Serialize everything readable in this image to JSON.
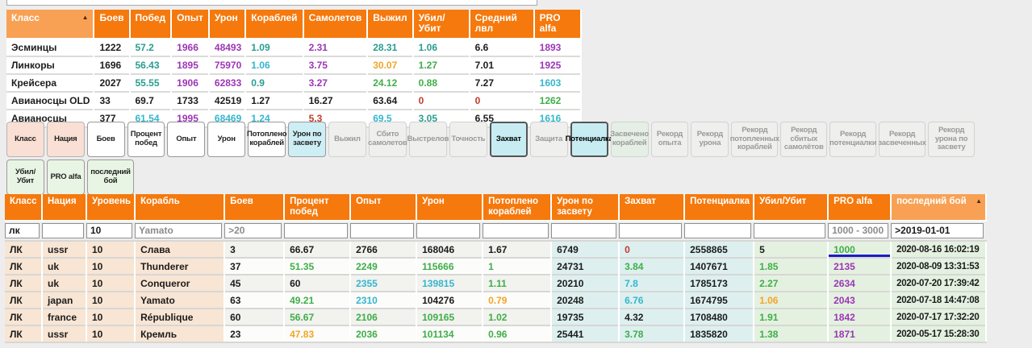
{
  "icons": {
    "sort_asc": "▲"
  },
  "colors": {
    "header_orange": "#f5790d",
    "header_sorted_orange": "#f8a155",
    "value_green": "#3fae49",
    "value_teal": "#2a9d8f",
    "value_cyan": "#35b6cd",
    "value_purple": "#9c36b5",
    "value_orange": "#f4a428",
    "value_red": "#c33a2c",
    "underline_blue": "#1d1dc9"
  },
  "summary_table": {
    "columns": [
      {
        "label": "Класс",
        "sorted": true
      },
      {
        "label": "Боев"
      },
      {
        "label": "Побед"
      },
      {
        "label": "Опыт"
      },
      {
        "label": "Урон"
      },
      {
        "label": "Кораблей"
      },
      {
        "label": "Самолетов"
      },
      {
        "label": "Выжил"
      },
      {
        "label": "Убил/Убит"
      },
      {
        "label": "Средний лвл"
      },
      {
        "label": "PRO alfa"
      }
    ],
    "rows": [
      {
        "cells": [
          [
            "Эсминцы",
            "k"
          ],
          [
            "1222",
            "k"
          ],
          [
            "57.2",
            "t"
          ],
          [
            "1966",
            "p"
          ],
          [
            "48493",
            "p"
          ],
          [
            "1.09",
            "t"
          ],
          [
            "2.31",
            "p"
          ],
          [
            "28.31",
            "t"
          ],
          [
            "1.06",
            "t"
          ],
          [
            "6.6",
            "k"
          ],
          [
            "1893",
            "p"
          ]
        ]
      },
      {
        "cells": [
          [
            "Линкоры",
            "k"
          ],
          [
            "1696",
            "k"
          ],
          [
            "56.43",
            "t"
          ],
          [
            "1895",
            "p"
          ],
          [
            "75970",
            "p"
          ],
          [
            "1.06",
            "c"
          ],
          [
            "3.75",
            "p"
          ],
          [
            "30.07",
            "o"
          ],
          [
            "1.27",
            "g"
          ],
          [
            "7.01",
            "k"
          ],
          [
            "1925",
            "p"
          ]
        ]
      },
      {
        "cells": [
          [
            "Крейсера",
            "k"
          ],
          [
            "2027",
            "k"
          ],
          [
            "55.55",
            "t"
          ],
          [
            "1906",
            "p"
          ],
          [
            "62833",
            "p"
          ],
          [
            "0.9",
            "t"
          ],
          [
            "3.27",
            "p"
          ],
          [
            "24.12",
            "g"
          ],
          [
            "0.88",
            "g"
          ],
          [
            "7.27",
            "k"
          ],
          [
            "1603",
            "c"
          ]
        ]
      },
      {
        "cells": [
          [
            "Авианосцы OLD",
            "k"
          ],
          [
            "33",
            "k"
          ],
          [
            "69.7",
            "k"
          ],
          [
            "1733",
            "k"
          ],
          [
            "42519",
            "k"
          ],
          [
            "1.27",
            "k"
          ],
          [
            "16.27",
            "k"
          ],
          [
            "63.64",
            "k"
          ],
          [
            "0",
            "r"
          ],
          [
            "0",
            "r"
          ],
          [
            "1262",
            "g"
          ]
        ]
      },
      {
        "cells": [
          [
            "Авианосцы",
            "k"
          ],
          [
            "377",
            "k"
          ],
          [
            "61.54",
            "c"
          ],
          [
            "1995",
            "p"
          ],
          [
            "68469",
            "c"
          ],
          [
            "1.24",
            "c"
          ],
          [
            "5.3",
            "r"
          ],
          [
            "69.5",
            "c"
          ],
          [
            "3.05",
            "t"
          ],
          [
            "6.55",
            "k"
          ],
          [
            "1616",
            "c"
          ]
        ]
      }
    ]
  },
  "buttons": {
    "row1": [
      {
        "label": "Класс",
        "state": "pink"
      },
      {
        "label": "Нация",
        "state": "pink"
      },
      {
        "label": "Боев",
        "state": "white"
      },
      {
        "label": "Процент побед",
        "state": "white"
      },
      {
        "label": "Опыт",
        "state": "white"
      },
      {
        "label": "Урон",
        "state": "white"
      },
      {
        "label": "Потоплено кораблей",
        "state": "white"
      },
      {
        "label": "Урон по засвету",
        "state": "cyan"
      },
      {
        "label": "Выжил",
        "state": "off"
      },
      {
        "label": "Сбито самолетов",
        "state": "off"
      },
      {
        "label": "Выстрелов",
        "state": "off"
      },
      {
        "label": "Точность",
        "state": "off"
      },
      {
        "label": "Захват",
        "state": "cyanact"
      },
      {
        "label": "Защита",
        "state": "off"
      },
      {
        "label": "Потенциалка",
        "state": "cyanact"
      },
      {
        "label": "Засвечено кораблей",
        "state": "offgreen"
      },
      {
        "label": "Рекорд опыта",
        "state": "off"
      },
      {
        "label": "Рекорд урона",
        "state": "off"
      },
      {
        "label": "Рекорд потопленных кораблей",
        "state": "off",
        "wide": true
      },
      {
        "label": "Рекорд сбитых самолётов",
        "state": "off",
        "wide": true
      },
      {
        "label": "Рекорд потенциалки",
        "state": "off",
        "wide": true
      },
      {
        "label": "Рекорд засвеченных",
        "state": "off",
        "wide": true
      },
      {
        "label": "Рекорд урона по засвету",
        "state": "off",
        "wide": true
      }
    ],
    "row2": [
      {
        "label": "Убил/Убит",
        "state": "green"
      },
      {
        "label": "PRO alfa",
        "state": "green"
      },
      {
        "label": "последний бой",
        "state": "green",
        "wide": true
      }
    ]
  },
  "ships_table": {
    "columns": [
      {
        "label": "Класс",
        "group": "peach",
        "filter": {
          "value": "лк"
        }
      },
      {
        "label": "Нация",
        "group": "peach",
        "filter": {}
      },
      {
        "label": "Уровень",
        "group": "peach",
        "filter": {
          "value": "10"
        }
      },
      {
        "label": "Корабль",
        "group": "peach",
        "filter": {
          "placeholder": "Yamato"
        }
      },
      {
        "label": "Боев",
        "group": "plain",
        "filter": {
          "placeholder": ">20"
        }
      },
      {
        "label": "Процент побед",
        "group": "plain",
        "filter": {}
      },
      {
        "label": "Опыт",
        "group": "plain",
        "filter": {}
      },
      {
        "label": "Урон",
        "group": "plain",
        "filter": {}
      },
      {
        "label": "Потоплено кораблей",
        "group": "plain",
        "filter": {}
      },
      {
        "label": "Урон по засвету",
        "group": "cyan",
        "filter": {}
      },
      {
        "label": "Захват",
        "group": "cyan",
        "filter": {}
      },
      {
        "label": "Потенциалка",
        "group": "cyan",
        "filter": {}
      },
      {
        "label": "Убил/Убит",
        "group": "green",
        "filter": {}
      },
      {
        "label": "PRO alfa",
        "group": "green",
        "filter": {
          "placeholder": "1000 - 3000"
        }
      },
      {
        "label": "последний бой",
        "group": "green",
        "sorted": true,
        "filter": {
          "value": ">2019-01-01"
        }
      }
    ],
    "rows": [
      {
        "cells": [
          [
            "ЛК",
            "k"
          ],
          [
            "ussr",
            "k"
          ],
          [
            "10",
            "k"
          ],
          [
            "Слава",
            "k"
          ],
          [
            "3",
            "k"
          ],
          [
            "66.67",
            "k"
          ],
          [
            "2766",
            "k"
          ],
          [
            "168046",
            "k"
          ],
          [
            "1.67",
            "k"
          ],
          [
            "6749",
            "k"
          ],
          [
            "0",
            "r"
          ],
          [
            "2558865",
            "k"
          ],
          [
            "5",
            "k"
          ],
          [
            "1000",
            "g",
            "ul"
          ],
          [
            "2020-08-16 16:02:19",
            "k"
          ]
        ]
      },
      {
        "cells": [
          [
            "ЛК",
            "k"
          ],
          [
            "uk",
            "k"
          ],
          [
            "10",
            "k"
          ],
          [
            "Thunderer",
            "k"
          ],
          [
            "37",
            "k"
          ],
          [
            "51.35",
            "g"
          ],
          [
            "2249",
            "g"
          ],
          [
            "115666",
            "g"
          ],
          [
            "1",
            "g"
          ],
          [
            "24731",
            "k"
          ],
          [
            "3.84",
            "g"
          ],
          [
            "1407671",
            "k"
          ],
          [
            "1.85",
            "g"
          ],
          [
            "2135",
            "p"
          ],
          [
            "2020-08-09 13:31:53",
            "k"
          ]
        ]
      },
      {
        "cells": [
          [
            "ЛК",
            "k"
          ],
          [
            "uk",
            "k"
          ],
          [
            "10",
            "k"
          ],
          [
            "Conqueror",
            "k"
          ],
          [
            "45",
            "k"
          ],
          [
            "60",
            "k"
          ],
          [
            "2355",
            "c"
          ],
          [
            "139815",
            "c"
          ],
          [
            "1.11",
            "g"
          ],
          [
            "20210",
            "k"
          ],
          [
            "7.8",
            "c"
          ],
          [
            "1785173",
            "k"
          ],
          [
            "2.27",
            "g"
          ],
          [
            "2634",
            "p"
          ],
          [
            "2020-07-20 17:39:42",
            "k"
          ]
        ]
      },
      {
        "cells": [
          [
            "ЛК",
            "k"
          ],
          [
            "japan",
            "k"
          ],
          [
            "10",
            "k"
          ],
          [
            "Yamato",
            "k"
          ],
          [
            "63",
            "k"
          ],
          [
            "49.21",
            "g"
          ],
          [
            "2310",
            "c"
          ],
          [
            "104276",
            "k"
          ],
          [
            "0.79",
            "o"
          ],
          [
            "20248",
            "k"
          ],
          [
            "6.76",
            "c"
          ],
          [
            "1674795",
            "k"
          ],
          [
            "1.06",
            "o"
          ],
          [
            "2043",
            "p"
          ],
          [
            "2020-07-18 14:47:08",
            "k"
          ]
        ]
      },
      {
        "cells": [
          [
            "ЛК",
            "k"
          ],
          [
            "france",
            "k"
          ],
          [
            "10",
            "k"
          ],
          [
            "République",
            "k"
          ],
          [
            "60",
            "k"
          ],
          [
            "56.67",
            "g"
          ],
          [
            "2106",
            "g"
          ],
          [
            "109165",
            "g"
          ],
          [
            "1.02",
            "g"
          ],
          [
            "19735",
            "k"
          ],
          [
            "4.32",
            "k"
          ],
          [
            "1708480",
            "k"
          ],
          [
            "1.91",
            "g"
          ],
          [
            "1842",
            "p"
          ],
          [
            "2020-07-17 17:32:20",
            "k"
          ]
        ]
      },
      {
        "cells": [
          [
            "ЛК",
            "k"
          ],
          [
            "ussr",
            "k"
          ],
          [
            "10",
            "k"
          ],
          [
            "Кремль",
            "k"
          ],
          [
            "23",
            "k"
          ],
          [
            "47.83",
            "o"
          ],
          [
            "2036",
            "g"
          ],
          [
            "101134",
            "g"
          ],
          [
            "0.96",
            "g"
          ],
          [
            "25441",
            "k"
          ],
          [
            "3.78",
            "g"
          ],
          [
            "1835820",
            "k"
          ],
          [
            "1.38",
            "g"
          ],
          [
            "1871",
            "p"
          ],
          [
            "2020-05-17 15:28:30",
            "k"
          ]
        ]
      }
    ]
  }
}
